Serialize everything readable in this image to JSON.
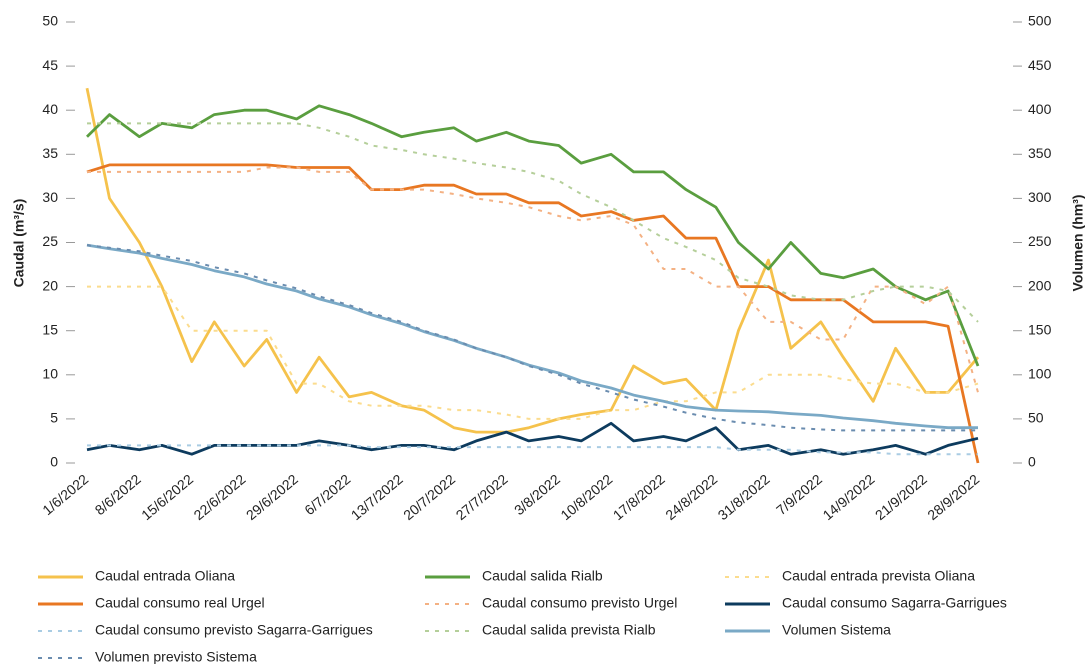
{
  "chart_data": {
    "type": "line",
    "y_label": "Caudal (m³/s)",
    "y2_label": "Volumen (hm³)",
    "x": [
      "1/6/2022",
      "4/6/2022",
      "8/6/2022",
      "11/6/2022",
      "15/6/2022",
      "18/6/2022",
      "22/6/2022",
      "25/6/2022",
      "29/6/2022",
      "2/7/2022",
      "6/7/2022",
      "9/7/2022",
      "13/7/2022",
      "16/7/2022",
      "20/7/2022",
      "23/7/2022",
      "27/7/2022",
      "30/7/2022",
      "3/8/2022",
      "6/8/2022",
      "10/8/2022",
      "13/8/2022",
      "17/8/2022",
      "20/8/2022",
      "24/8/2022",
      "27/8/2022",
      "31/8/2022",
      "3/9/2022",
      "7/9/2022",
      "10/9/2022",
      "14/9/2022",
      "17/9/2022",
      "21/9/2022",
      "24/9/2022",
      "28/9/2022"
    ],
    "xticks": [
      "1/6/2022",
      "8/6/2022",
      "15/6/2022",
      "22/6/2022",
      "29/6/2022",
      "6/7/2022",
      "13/7/2022",
      "20/7/2022",
      "27/7/2022",
      "3/8/2022",
      "10/8/2022",
      "17/8/2022",
      "24/8/2022",
      "31/8/2022",
      "7/9/2022",
      "14/9/2022",
      "21/9/2022",
      "28/9/2022"
    ],
    "ylim": [
      0,
      50
    ],
    "yticks": [
      0,
      5,
      10,
      15,
      20,
      25,
      30,
      35,
      40,
      45,
      50
    ],
    "y2lim": [
      0,
      500
    ],
    "y2ticks": [
      0,
      50,
      100,
      150,
      200,
      250,
      300,
      350,
      400,
      450,
      500
    ],
    "series": [
      {
        "name": "Caudal entrada Oliana",
        "color": "#f5c24c",
        "dashed": false,
        "values": [
          42.5,
          30,
          25,
          20,
          11.5,
          16,
          11,
          14,
          8,
          12,
          7.5,
          8,
          6.5,
          6,
          4,
          3.5,
          3.5,
          4,
          5,
          5.5,
          6,
          11,
          9,
          9.5,
          6,
          15,
          23,
          13,
          16,
          12,
          7,
          13,
          8,
          8,
          12
        ]
      },
      {
        "name": "Caudal salida Rialb",
        "color": "#5a9e3f",
        "dashed": false,
        "values": [
          37,
          39.5,
          37,
          38.5,
          38,
          39.5,
          40,
          40,
          39,
          40.5,
          39.5,
          38.5,
          37,
          37.5,
          38,
          36.5,
          37.5,
          36.5,
          36,
          34,
          35,
          33,
          33,
          31,
          29,
          25,
          22,
          25,
          21.5,
          21,
          22,
          20,
          18.5,
          19.5,
          11
        ]
      },
      {
        "name": "Caudal entrada prevista Oliana",
        "color": "#fbdc8e",
        "dashed": true,
        "values": [
          20,
          20,
          20,
          20,
          15,
          15,
          15,
          15,
          9,
          9,
          7,
          6.5,
          6.5,
          6.5,
          6,
          6,
          5.5,
          5,
          5,
          5,
          6,
          6,
          7,
          7,
          8,
          8,
          10,
          10,
          10,
          9.5,
          9,
          9,
          8,
          8,
          9
        ]
      },
      {
        "name": "Caudal consumo real Urgel",
        "color": "#e87722",
        "dashed": false,
        "values": [
          33,
          33.8,
          33.8,
          33.8,
          33.8,
          33.8,
          33.8,
          33.8,
          33.5,
          33.5,
          33.5,
          31,
          31,
          31.5,
          31.5,
          30.5,
          30.5,
          29.5,
          29.5,
          28,
          28.5,
          27.5,
          28,
          25.5,
          25.5,
          20,
          20,
          18.5,
          18.5,
          18.5,
          16,
          16,
          16,
          15.5,
          0
        ]
      },
      {
        "name": "Caudal consumo previsto Urgel",
        "color": "#f4b183",
        "dashed": true,
        "values": [
          33,
          33,
          33,
          33,
          33,
          33,
          33,
          33.5,
          33.5,
          33,
          33,
          31,
          31,
          31,
          30.5,
          30,
          29.5,
          29,
          28,
          27.5,
          28,
          27,
          22,
          22,
          20,
          20,
          16,
          16,
          14,
          14,
          20,
          20,
          18,
          20,
          8
        ]
      },
      {
        "name": "Caudal consumo Sagarra-Garrigues",
        "color": "#0d3b5e",
        "dashed": false,
        "values": [
          1.5,
          2,
          1.5,
          2,
          1,
          2,
          2,
          2,
          2,
          2.5,
          2,
          1.5,
          2,
          2,
          1.5,
          2.5,
          3.5,
          2.5,
          3,
          2.5,
          4.5,
          2.5,
          3,
          2.5,
          4,
          1.5,
          2,
          1,
          1.5,
          1,
          1.5,
          2,
          1,
          2,
          2.8
        ]
      },
      {
        "name": "Caudal consumo previsto Sagarra-Garrigues",
        "color": "#a9cce3",
        "dashed": true,
        "values": [
          2,
          2,
          2,
          2,
          2,
          2,
          2,
          2,
          2,
          2,
          2,
          1.8,
          1.8,
          1.8,
          1.8,
          1.8,
          1.8,
          1.8,
          1.8,
          1.8,
          1.8,
          1.8,
          1.8,
          1.8,
          1.8,
          1.5,
          1.5,
          1.5,
          1.2,
          1.2,
          1.2,
          1,
          1,
          1,
          1
        ]
      },
      {
        "name": "Caudal salida prevista Rialb",
        "color": "#b5cf9a",
        "dashed": true,
        "values": [
          38.5,
          38.5,
          38.5,
          38.5,
          38.5,
          38.5,
          38.5,
          38.5,
          38.5,
          38,
          37,
          36,
          35.5,
          35,
          34.5,
          34,
          33.5,
          33,
          32,
          30.5,
          29,
          27.5,
          25.5,
          24.5,
          23,
          21,
          20,
          19,
          18.5,
          18.5,
          19.5,
          20,
          20,
          19.5,
          16
        ]
      },
      {
        "name": "Volumen Sistema",
        "color": "#7aa9c6",
        "dashed": false,
        "axis": "y2",
        "values": [
          247,
          243,
          238,
          232,
          225,
          218,
          211,
          203,
          195,
          186,
          177,
          168,
          158,
          149,
          139,
          130,
          120,
          111,
          102,
          93,
          85,
          77,
          70,
          64,
          60,
          59,
          58,
          56,
          54,
          51,
          48,
          45,
          42,
          40,
          40
        ]
      },
      {
        "name": "Volumen previsto Sistema",
        "color": "#6a8caf",
        "dashed": true,
        "axis": "y2",
        "values": [
          247,
          244,
          240,
          235,
          229,
          222,
          215,
          207,
          198,
          189,
          179,
          170,
          160,
          150,
          140,
          130,
          120,
          110,
          100,
          90,
          80,
          72,
          64,
          57,
          50,
          46,
          43,
          40,
          38,
          37,
          37,
          37,
          37,
          37,
          37
        ]
      }
    ]
  }
}
